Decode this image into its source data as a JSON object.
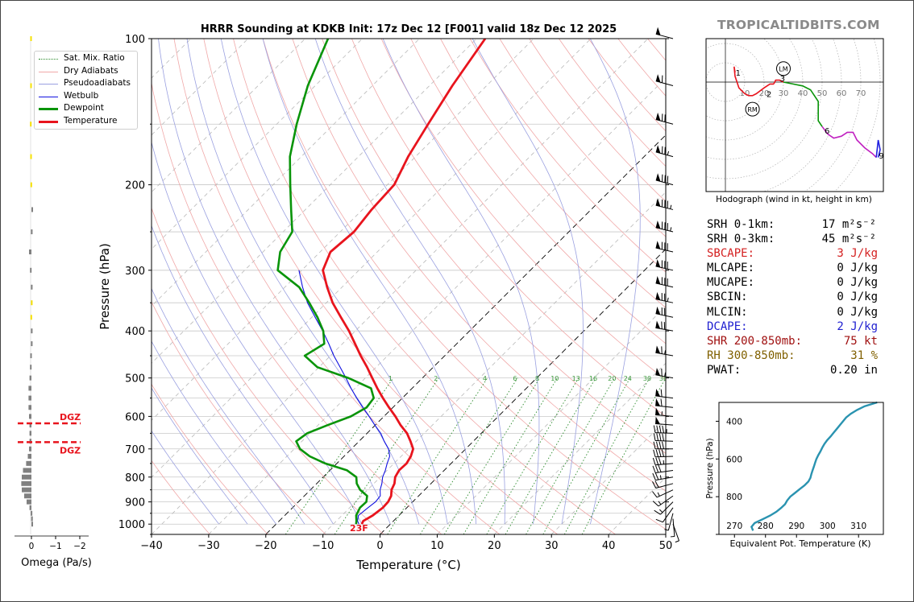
{
  "watermark": "TROPICALTIDBITS.COM",
  "legend": [
    "Sat. Mix. Ratio",
    "Dry Adiabats",
    "Pseudoadiabats",
    "Wetbulb",
    "Dewpoint",
    "Temperature"
  ],
  "colors": {
    "temperature": "#e8141d",
    "dewpoint": "#099409",
    "wetbulb": "#1010e0",
    "dry_adiabat": "#f0a8a8",
    "pseudoadiabat": "#9aa0e0",
    "mixing_ratio": "#2a8a2a",
    "isotherm": "#888888",
    "dgz": "#e8141d",
    "omega_bar": "#808080",
    "omega_highlight": "#f5e000",
    "theta_e": "#2a93b0"
  },
  "stats": [
    {
      "label": "SRH 0-1km:",
      "value": "17",
      "unit": "m²s⁻²",
      "color": "#000000"
    },
    {
      "label": "SRH 0-3km:",
      "value": "45",
      "unit": "m²s⁻²",
      "color": "#000000"
    },
    {
      "label": "SBCAPE:",
      "value": "3 J/kg",
      "unit": "",
      "color": "#d42020"
    },
    {
      "label": "MLCAPE:",
      "value": "0 J/kg",
      "unit": "",
      "color": "#000000"
    },
    {
      "label": "MUCAPE:",
      "value": "0 J/kg",
      "unit": "",
      "color": "#000000"
    },
    {
      "label": "SBCIN:",
      "value": "0 J/kg",
      "unit": "",
      "color": "#000000"
    },
    {
      "label": "MLCIN:",
      "value": "0 J/kg",
      "unit": "",
      "color": "#000000"
    },
    {
      "label": "DCAPE:",
      "value": "2 J/kg",
      "unit": "",
      "color": "#2020d0"
    },
    {
      "label": "SHR 200-850mb:",
      "value": "75 kt",
      "unit": "",
      "color": "#a01010"
    },
    {
      "label": "RH 300-850mb:",
      "value": "31 %",
      "unit": "",
      "color": "#806000"
    },
    {
      "label": "PWAT:",
      "value": "0.20 in",
      "unit": "",
      "color": "#000000"
    }
  ],
  "chart_data": [
    {
      "type": "line",
      "title": "HRRR Sounding at KDKB Init: 17z Dec 12 [F001] valid 18z Dec 12 2025",
      "xlabel": "Temperature (°C)",
      "ylabel": "Pressure (hPa)",
      "xlim": [
        -40,
        50
      ],
      "ylim": [
        1050,
        100
      ],
      "y_scale": "log",
      "x_ticks": [
        -40,
        -30,
        -20,
        -10,
        0,
        10,
        20,
        30,
        40,
        50
      ],
      "x_tick_labels": [
        "−40",
        "−30",
        "−20",
        "−10",
        "0",
        "10",
        "20",
        "30",
        "40",
        "50"
      ],
      "y_ticks": [
        100,
        200,
        300,
        400,
        500,
        600,
        700,
        800,
        900,
        1000
      ],
      "isobars": [
        100,
        150,
        200,
        250,
        300,
        350,
        400,
        450,
        500,
        550,
        600,
        650,
        700,
        750,
        800,
        850,
        900,
        950,
        1000,
        1050
      ],
      "dashed_isotherms": [
        -20,
        0
      ],
      "dry_adiabats_K": [
        240,
        250,
        260,
        270,
        280,
        290,
        300,
        310,
        320,
        330,
        340,
        350,
        360,
        370,
        380,
        390,
        400,
        410,
        420,
        430,
        440,
        450,
        460,
        470,
        480
      ],
      "pseudoadiabats_C": [
        -30,
        -25,
        -20,
        -15,
        -10,
        -5,
        0,
        5,
        10,
        15,
        20,
        25,
        30,
        35
      ],
      "mixing_ratios": [
        1,
        2,
        4,
        6,
        8,
        10,
        13,
        16,
        20,
        24,
        30,
        36
      ],
      "mixing_ratio_labels": [
        "1",
        "2",
        "4",
        "6",
        "8",
        "10",
        "13",
        "16",
        "20",
        "24",
        "30",
        "36"
      ],
      "surface_label": "23F",
      "series": [
        {
          "name": "Temperature",
          "pressure": [
            1000,
            985,
            960,
            925,
            900,
            875,
            850,
            825,
            800,
            775,
            750,
            725,
            700,
            675,
            650,
            625,
            600,
            575,
            550,
            525,
            500,
            475,
            450,
            425,
            400,
            375,
            350,
            325,
            300,
            275,
            250,
            225,
            200,
            175,
            150,
            125,
            100
          ],
          "values": [
            -5.0,
            -5.3,
            -4.6,
            -4.2,
            -4.3,
            -4.8,
            -5.8,
            -6.4,
            -7.4,
            -7.9,
            -7.8,
            -8.3,
            -9.2,
            -11.0,
            -13.0,
            -15.6,
            -18.0,
            -20.7,
            -23.4,
            -26.1,
            -28.8,
            -31.6,
            -34.7,
            -37.8,
            -41.1,
            -44.9,
            -48.9,
            -52.6,
            -56.3,
            -58.2,
            -57.6,
            -58.4,
            -58.8,
            -61.3,
            -63.5,
            -66.0,
            -68.5
          ]
        },
        {
          "name": "Dewpoint",
          "pressure": [
            1000,
            985,
            960,
            925,
            900,
            875,
            850,
            825,
            800,
            775,
            750,
            725,
            700,
            675,
            650,
            625,
            600,
            575,
            550,
            525,
            500,
            475,
            450,
            425,
            400,
            375,
            350,
            325,
            300,
            275,
            250,
            225,
            200,
            175,
            150,
            125,
            100
          ],
          "values": [
            -6.0,
            -6.5,
            -7.5,
            -8.2,
            -8.1,
            -9.0,
            -11.3,
            -13.0,
            -14.2,
            -17.0,
            -22.0,
            -26.0,
            -29.0,
            -31.0,
            -30.5,
            -28.3,
            -25.8,
            -24.6,
            -25.0,
            -27.2,
            -33.0,
            -40.3,
            -44.5,
            -43.2,
            -45.6,
            -49.0,
            -53.0,
            -57.5,
            -64.2,
            -67.0,
            -68.4,
            -72.5,
            -77.0,
            -82.0,
            -86.5,
            -91.3,
            -96.0
          ]
        },
        {
          "name": "Wetbulb",
          "pressure": [
            1000,
            985,
            960,
            925,
            900,
            875,
            850,
            825,
            800,
            775,
            750,
            725,
            700,
            675,
            650,
            625,
            600,
            575,
            550,
            525,
            500,
            475,
            450,
            425,
            400,
            375,
            350,
            325,
            300
          ],
          "values": [
            -5.5,
            -6.3,
            -7.1,
            -6.8,
            -6.5,
            -6.7,
            -7.8,
            -8.6,
            -9.6,
            -10.3,
            -11.2,
            -12.0,
            -13.5,
            -15.6,
            -17.6,
            -20.1,
            -22.6,
            -25.3,
            -28.0,
            -30.7,
            -33.4,
            -36.3,
            -39.4,
            -42.4,
            -45.7,
            -49.4,
            -53.3,
            -56.9,
            -60.5
          ]
        }
      ],
      "wind_barbs": {
        "pressure": [
          1000,
          975,
          950,
          925,
          900,
          875,
          850,
          825,
          800,
          775,
          750,
          725,
          700,
          675,
          650,
          625,
          600,
          575,
          550,
          500,
          450,
          400,
          375,
          350,
          325,
          300,
          275,
          250,
          225,
          200,
          175,
          150,
          125,
          100
        ],
        "direction_deg": [
          160,
          175,
          195,
          215,
          225,
          235,
          245,
          255,
          260,
          262,
          265,
          268,
          270,
          272,
          272,
          274,
          275,
          276,
          277,
          280,
          280,
          280,
          282,
          282,
          283,
          283,
          283,
          284,
          284,
          285,
          285,
          285,
          285,
          285
        ],
        "speed_kt": [
          5,
          5,
          5,
          10,
          15,
          15,
          15,
          20,
          25,
          30,
          35,
          40,
          40,
          40,
          45,
          50,
          55,
          60,
          60,
          65,
          65,
          70,
          70,
          75,
          80,
          80,
          80,
          85,
          85,
          80,
          75,
          70,
          60,
          50
        ]
      }
    },
    {
      "type": "bar",
      "title": "Omega",
      "xlabel": "Omega (Pa/s)",
      "xlim": [
        -2,
        0.3
      ],
      "x_ticks": [
        0,
        -1,
        -2
      ],
      "x_tick_labels": [
        "0",
        "−1",
        "−2"
      ],
      "dgz_label": "DGZ",
      "dgz_pressures": [
        620,
        678
      ],
      "pressure": [
        100,
        125,
        150,
        175,
        200,
        225,
        250,
        275,
        300,
        325,
        350,
        375,
        400,
        425,
        450,
        475,
        500,
        525,
        550,
        575,
        600,
        625,
        650,
        675,
        700,
        725,
        750,
        775,
        800,
        825,
        850,
        875,
        900,
        925,
        950,
        975,
        1000
      ],
      "values": [
        0.05,
        0.05,
        0.06,
        0.05,
        0.04,
        0.0,
        0.02,
        0.1,
        0.06,
        0.02,
        0.02,
        0.04,
        0.02,
        0.02,
        0.05,
        0.06,
        0.08,
        0.12,
        0.12,
        0.12,
        0.1,
        0.08,
        0.08,
        0.08,
        0.1,
        0.15,
        0.22,
        0.35,
        0.4,
        0.42,
        0.4,
        0.3,
        0.2,
        0.08,
        0.03,
        0.01,
        0.0
      ],
      "highlight_pressures": [
        100,
        125,
        150,
        175,
        200,
        350,
        375
      ]
    },
    {
      "type": "line",
      "title": "Hodograph (wind in kt, height in km)",
      "ring_labels": [
        "10",
        "20",
        "30",
        "40",
        "50",
        "60",
        "70"
      ],
      "rings_kt": [
        10,
        20,
        30,
        40,
        50,
        60,
        70,
        80
      ],
      "xlim": [
        -10,
        80
      ],
      "ylim": [
        -55,
        22
      ],
      "height_labels": [
        "1",
        "2",
        "3",
        "6",
        "9"
      ],
      "markers": [
        {
          "label": "LM",
          "u": 30,
          "v": 7
        },
        {
          "label": "RM",
          "u": 14,
          "v": -14
        }
      ],
      "segments": [
        {
          "color": "#e8141d",
          "u": [
            5,
            4.5,
            5,
            7,
            10,
            12,
            14,
            16,
            20,
            23,
            25
          ],
          "v": [
            5,
            8,
            3,
            -3,
            -6,
            -7,
            -7,
            -6,
            -3,
            -1,
            -1
          ]
        },
        {
          "color": "#e8141d",
          "u": [
            25,
            26,
            28,
            30
          ],
          "v": [
            -1,
            1,
            1,
            0
          ]
        },
        {
          "color": "#099409",
          "u": [
            30,
            35,
            40,
            44,
            48,
            48,
            48,
            48,
            50
          ],
          "v": [
            0,
            -1,
            -2,
            -4,
            -10,
            -14,
            -18,
            -20,
            -23
          ]
        },
        {
          "color": "#c020c0",
          "u": [
            50,
            53,
            56,
            60,
            63,
            66,
            68,
            72,
            76,
            78
          ],
          "v": [
            -23,
            -27,
            -29,
            -28,
            -26,
            -26,
            -30,
            -34,
            -37,
            -39
          ]
        },
        {
          "color": "#2020e0",
          "u": [
            78,
            79,
            80,
            79
          ],
          "v": [
            -39,
            -30,
            -35,
            -39
          ]
        }
      ]
    },
    {
      "type": "line",
      "title": "Equivalent Pot. Temperature",
      "xlabel": "Equivalent Pot. Temperature (K)",
      "ylabel": "Pressure (hPa)",
      "xlim": [
        265,
        318
      ],
      "ylim": [
        1000,
        300
      ],
      "x_ticks": [
        270,
        280,
        290,
        300,
        310
      ],
      "y_ticks": [
        400,
        600,
        800,
        1000
      ],
      "y_tick_labels": [
        "400",
        "600",
        "800",
        ""
      ],
      "pressure": [
        980,
        960,
        940,
        920,
        900,
        880,
        860,
        840,
        820,
        800,
        780,
        760,
        740,
        720,
        700,
        680,
        660,
        640,
        620,
        600,
        580,
        560,
        540,
        520,
        500,
        480,
        460,
        440,
        420,
        400,
        380,
        360,
        340,
        320,
        300
      ],
      "values": [
        276.0,
        275.5,
        276.5,
        279.0,
        281.5,
        283.5,
        285.0,
        286.3,
        287.0,
        288.0,
        289.5,
        291.0,
        292.6,
        293.8,
        294.5,
        294.8,
        295.2,
        295.6,
        296.0,
        296.4,
        297.0,
        297.7,
        298.3,
        299.0,
        299.9,
        301.0,
        302.0,
        303.0,
        304.0,
        305.0,
        306.0,
        307.5,
        309.5,
        312.0,
        316.0
      ]
    }
  ]
}
